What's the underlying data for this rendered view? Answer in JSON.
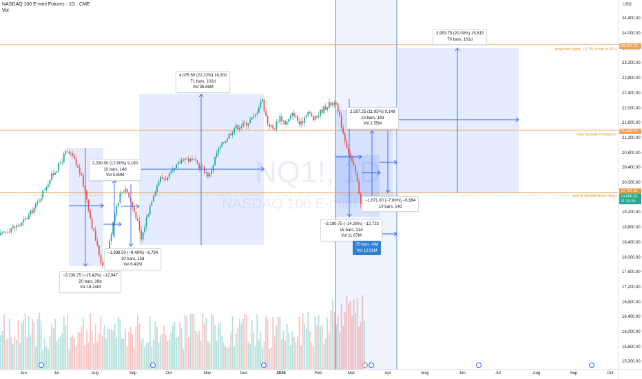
{
  "header": {
    "title": "NASDAQ 100 E-mini Futures · 1D · CME",
    "volume_label": "Vol"
  },
  "watermark": {
    "symbol": "NQ1!, 1D",
    "name": "NASDAQ 100 E-mini Futures"
  },
  "price_axis": {
    "currency": "USD",
    "ticks": [
      "24,400.00",
      "24,000.00",
      "23,600.00",
      "23,200.00",
      "22,800.00",
      "22,400.00",
      "22,000.00",
      "21,600.00",
      "21,200.00",
      "20,800.00",
      "20,400.00",
      "20,000.00",
      "19,600.00",
      "19,200.00",
      "18,800.00",
      "18,400.00",
      "18,000.00",
      "17,600.00",
      "17,200.00",
      "16,800.00",
      "16,400.00",
      "16,000.00",
      "15,600.00",
      "15,200.00"
    ],
    "price_tags": [
      {
        "text": "23,727.75",
        "color": "#f0a35a"
      },
      {
        "text": "21,433.75",
        "color": "#f0a35a"
      },
      {
        "text": "19,762.00",
        "color": "#e8913a"
      },
      {
        "text": "19,686.25",
        "color": "#26a69a"
      },
      {
        "text": "21:20:29",
        "color": "#26a69a"
      }
    ]
  },
  "time_axis": {
    "labels": [
      {
        "text": "Jun",
        "bold": false
      },
      {
        "text": "Jul",
        "bold": false
      },
      {
        "text": "Aug",
        "bold": false
      },
      {
        "text": "Sep",
        "bold": false
      },
      {
        "text": "Oct",
        "bold": false
      },
      {
        "text": "Nov",
        "bold": false
      },
      {
        "text": "Dec",
        "bold": false
      },
      {
        "text": "2025",
        "bold": true
      },
      {
        "text": "Feb",
        "bold": false
      },
      {
        "text": "Mar",
        "bold": false
      },
      {
        "text": "Apr",
        "bold": false
      },
      {
        "text": "May",
        "bold": false
      },
      {
        "text": "Jun",
        "bold": false
      },
      {
        "text": "Jul",
        "bold": false
      },
      {
        "text": "Aug",
        "bold": false
      },
      {
        "text": "Sep",
        "bold": false
      },
      {
        "text": "Oct",
        "bold": false
      }
    ]
  },
  "horizontal_levels": [
    {
      "label": "projected highs, +6-7% of top of ATH",
      "price": 23727.75,
      "color": "#f0a35a"
    },
    {
      "label": "intermediate resistance",
      "price": 21433.75,
      "color": "#f0a35a"
    },
    {
      "label": "end of second wave down",
      "price": 19762,
      "color": "#e8913a"
    }
  ],
  "measurements": {
    "m1": {
      "line1": "−3,236.75 (−15.42%) −12,947",
      "line2": "20 bars, 28d",
      "line3": "Vol 16.24M"
    },
    "m2": {
      "line1": "2,290.00 (12.90%) 9,160",
      "line2": "10 bars, 14d",
      "line3": "Vol 5.69M"
    },
    "m3": {
      "line1": "−1,698.50 (−8.48%) −6,794",
      "line2": "10 bars, 15d",
      "line3": "Vol 6.42M"
    },
    "m4": {
      "line1": "4,075.50 (22.22%) 16,302",
      "line2": "71 bars, 102d",
      "line3": "Vol 36.86M"
    },
    "m5": {
      "line1": "2,287.25 (11.95%) 9,149",
      "line2": "10 bars, 14d",
      "line3": "Vol 1.55M"
    },
    "m6": {
      "line1": "−1,671.00 (−7.80%) −6,684",
      "line2": "10 bars, 14d"
    },
    "m7": {
      "line1": "−3,180.75 (−14.26%) −12,723",
      "line2": "15 bars, 21d",
      "line3": "Vol 11.87M"
    },
    "m8": {
      "line1": "3,953.75 (20.00%) 15,815",
      "line2": "70 bars, 101d"
    },
    "m9": {
      "line1": "35 bars, 49d",
      "line2": "Vol 12.58M"
    }
  },
  "colors": {
    "up": "#26a69a",
    "down": "#ef5350",
    "box_fill": "rgba(41,98,255,0.12)",
    "line_blue": "#2962ff"
  }
}
